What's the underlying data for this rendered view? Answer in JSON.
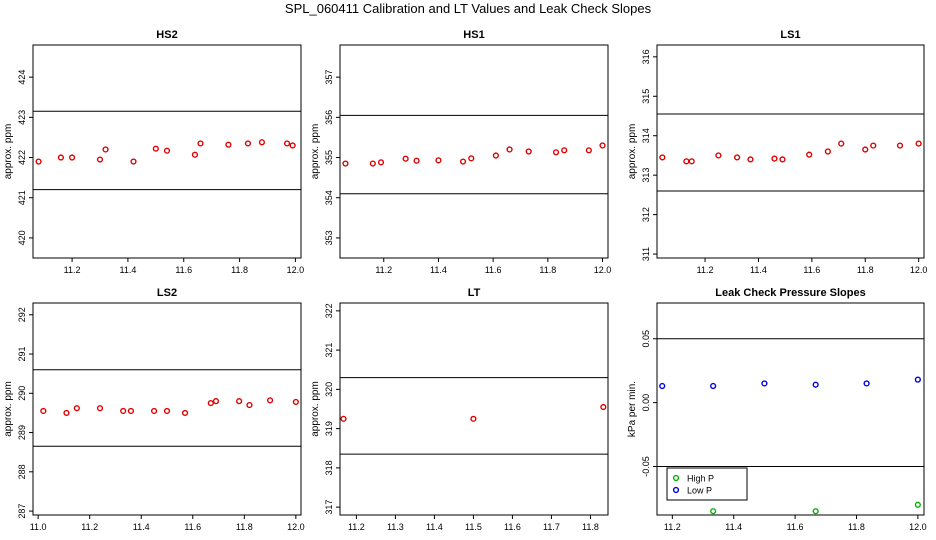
{
  "figure": {
    "title": "SPL_060411  Calibration and LT Values and Leak Check Slopes"
  },
  "chart_data": [
    {
      "type": "scatter",
      "title": "HS2",
      "ylabel": "approx. ppm",
      "xlim": [
        11.06,
        12.02
      ],
      "ylim": [
        419.5,
        424.8
      ],
      "xticks": [
        11.2,
        11.4,
        11.6,
        11.8,
        12.0
      ],
      "xtick_labels": [
        "11.2",
        "11.4",
        "11.6",
        "11.8",
        "12.0"
      ],
      "yticks": [
        420,
        421,
        422,
        423,
        424
      ],
      "ytick_labels": [
        "420",
        "421",
        "422",
        "423",
        "424"
      ],
      "hlines": [
        423.15,
        421.2
      ],
      "series": [
        {
          "color": "#e00000",
          "x": [
            11.08,
            11.16,
            11.2,
            11.3,
            11.32,
            11.42,
            11.5,
            11.54,
            11.64,
            11.66,
            11.76,
            11.83,
            11.88,
            11.97,
            11.99
          ],
          "y": [
            421.9,
            422.0,
            422.0,
            421.95,
            422.2,
            421.9,
            422.22,
            422.17,
            422.07,
            422.35,
            422.32,
            422.35,
            422.38,
            422.35,
            422.3
          ]
        }
      ]
    },
    {
      "type": "scatter",
      "title": "HS1",
      "ylabel": "approx. ppm",
      "xlim": [
        11.04,
        12.02
      ],
      "ylim": [
        352.5,
        357.8
      ],
      "xticks": [
        11.2,
        11.4,
        11.6,
        11.8,
        12.0
      ],
      "xtick_labels": [
        "11.2",
        "11.4",
        "11.6",
        "11.8",
        "12.0"
      ],
      "yticks": [
        353,
        354,
        355,
        356,
        357
      ],
      "ytick_labels": [
        "353",
        "354",
        "355",
        "356",
        "357"
      ],
      "hlines": [
        356.05,
        354.1
      ],
      "series": [
        {
          "color": "#e00000",
          "x": [
            11.06,
            11.16,
            11.19,
            11.28,
            11.32,
            11.4,
            11.49,
            11.52,
            11.61,
            11.66,
            11.73,
            11.83,
            11.86,
            11.95,
            12.0
          ],
          "y": [
            354.85,
            354.85,
            354.88,
            354.97,
            354.92,
            354.93,
            354.9,
            354.98,
            355.05,
            355.2,
            355.15,
            355.13,
            355.18,
            355.18,
            355.3
          ]
        }
      ]
    },
    {
      "type": "scatter",
      "title": "LS1",
      "ylabel": "approx. ppm",
      "xlim": [
        11.02,
        12.02
      ],
      "ylim": [
        310.9,
        316.3
      ],
      "xticks": [
        11.2,
        11.4,
        11.6,
        11.8,
        12.0
      ],
      "xtick_labels": [
        "11.2",
        "11.4",
        "11.6",
        "11.8",
        "12.0"
      ],
      "yticks": [
        311,
        312,
        313,
        314,
        315,
        316
      ],
      "ytick_labels": [
        "311",
        "312",
        "313",
        "314",
        "315",
        "316"
      ],
      "hlines": [
        314.55,
        312.6
      ],
      "series": [
        {
          "color": "#e00000",
          "x": [
            11.04,
            11.13,
            11.15,
            11.25,
            11.32,
            11.37,
            11.46,
            11.49,
            11.59,
            11.66,
            11.71,
            11.8,
            11.83,
            11.93,
            12.0
          ],
          "y": [
            313.45,
            313.35,
            313.35,
            313.5,
            313.45,
            313.4,
            313.42,
            313.4,
            313.52,
            313.6,
            313.8,
            313.65,
            313.75,
            313.75,
            313.8
          ]
        }
      ]
    },
    {
      "type": "scatter",
      "title": "LS2",
      "ylabel": "approx. ppm",
      "xlim": [
        10.98,
        12.02
      ],
      "ylim": [
        286.9,
        292.3
      ],
      "xticks": [
        11.0,
        11.2,
        11.4,
        11.6,
        11.8,
        12.0
      ],
      "xtick_labels": [
        "11.0",
        "11.2",
        "11.4",
        "11.6",
        "11.8",
        "12.0"
      ],
      "yticks": [
        287,
        288,
        289,
        290,
        291,
        292
      ],
      "ytick_labels": [
        "287",
        "288",
        "289",
        "290",
        "291",
        "292"
      ],
      "hlines": [
        290.6,
        288.65
      ],
      "series": [
        {
          "color": "#e00000",
          "x": [
            11.02,
            11.11,
            11.15,
            11.24,
            11.33,
            11.36,
            11.45,
            11.5,
            11.57,
            11.67,
            11.69,
            11.78,
            11.82,
            11.9,
            12.0
          ],
          "y": [
            289.55,
            289.5,
            289.62,
            289.62,
            289.55,
            289.55,
            289.55,
            289.55,
            289.5,
            289.75,
            289.8,
            289.8,
            289.7,
            289.82,
            289.78
          ]
        }
      ]
    },
    {
      "type": "scatter",
      "title": "LT",
      "ylabel": "approx. ppm",
      "xlim": [
        11.158,
        11.845
      ],
      "ylim": [
        316.8,
        322.2
      ],
      "xticks": [
        11.2,
        11.3,
        11.4,
        11.5,
        11.6,
        11.7,
        11.8
      ],
      "xtick_labels": [
        "11.2",
        "11.3",
        "11.4",
        "11.5",
        "11.6",
        "11.7",
        "11.8"
      ],
      "yticks": [
        317,
        318,
        319,
        320,
        321,
        322
      ],
      "ytick_labels": [
        "317",
        "318",
        "319",
        "320",
        "321",
        "322"
      ],
      "hlines": [
        320.3,
        318.35
      ],
      "series": [
        {
          "color": "#e00000",
          "x": [
            11.167,
            11.5,
            11.833
          ],
          "y": [
            319.25,
            319.25,
            319.55
          ]
        }
      ]
    },
    {
      "type": "scatter",
      "title": "Leak Check Pressure Slopes",
      "ylabel": "kPa per min.",
      "xlim": [
        11.15,
        12.02
      ],
      "ylim": [
        -0.088,
        0.078
      ],
      "xticks": [
        11.2,
        11.4,
        11.6,
        11.8,
        12.0
      ],
      "xtick_labels": [
        "11.2",
        "11.4",
        "11.6",
        "11.8",
        "12.0"
      ],
      "yticks": [
        -0.05,
        0.0,
        0.05
      ],
      "ytick_labels": [
        "-0.05",
        "0.00",
        "0.05"
      ],
      "hlines": [
        0.05,
        -0.05
      ],
      "legend": {
        "position": "bottom-left",
        "entries": [
          "High P",
          "Low P"
        ]
      },
      "series": [
        {
          "name": "High P",
          "color": "#00b400",
          "x": [
            11.333,
            11.667,
            12.0
          ],
          "y": [
            -0.085,
            -0.085,
            -0.08
          ]
        },
        {
          "name": "Low P",
          "color": "#0000e0",
          "x": [
            11.167,
            11.333,
            11.5,
            11.667,
            11.833,
            12.0
          ],
          "y": [
            0.013,
            0.013,
            0.015,
            0.014,
            0.015,
            0.018
          ]
        }
      ]
    }
  ]
}
